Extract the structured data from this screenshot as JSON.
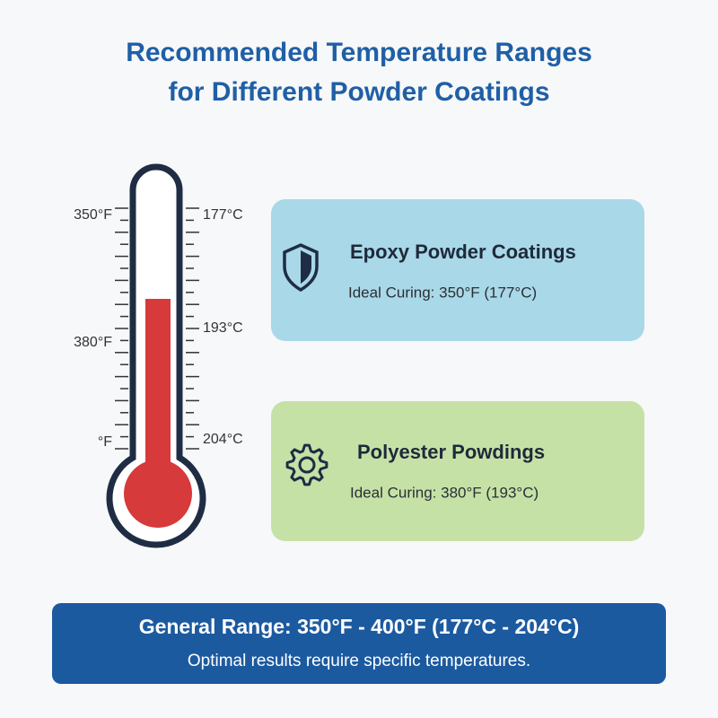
{
  "header": {
    "title_lines": [
      "Recommended Temperature Ranges",
      "for Different Powder Coatings"
    ]
  },
  "thermometer": {
    "left_labels": [
      "350°F",
      "380°F",
      "°F"
    ],
    "right_labels": [
      "177°C",
      "193°C",
      "204°C"
    ]
  },
  "cards": [
    {
      "title": "Epoxy Powder Coatings",
      "detail": "Ideal Curing: 350°F (177°C)"
    },
    {
      "title": "Polyester Powdings",
      "detail": "Ideal Curing: 380°F (193°C)"
    }
  ],
  "footer": {
    "title": "General Range: 350°F - 400°F (177°C - 204°C)",
    "note": "Optimal results require specific temperatures."
  }
}
